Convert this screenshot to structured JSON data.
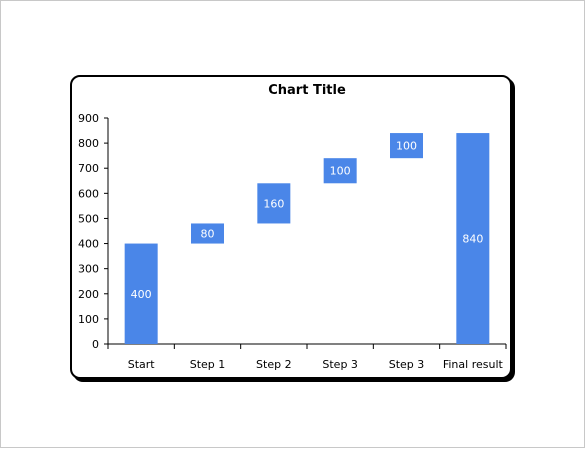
{
  "chart_data": {
    "type": "bar",
    "subtype": "waterfall",
    "title": "Chart Title",
    "xlabel": "",
    "ylabel": "",
    "categories": [
      "Start",
      "Step 1",
      "Step 2",
      "Step 3",
      "Step 3",
      "Final result"
    ],
    "values": [
      400,
      80,
      160,
      100,
      100,
      840
    ],
    "bar_base": [
      0,
      400,
      480,
      640,
      740,
      0
    ],
    "ylim": [
      0,
      900
    ],
    "yticks": [
      0,
      100,
      200,
      300,
      400,
      500,
      600,
      700,
      800,
      900
    ],
    "grid": false,
    "legend": "none",
    "bar_color": "#4a86e8"
  }
}
